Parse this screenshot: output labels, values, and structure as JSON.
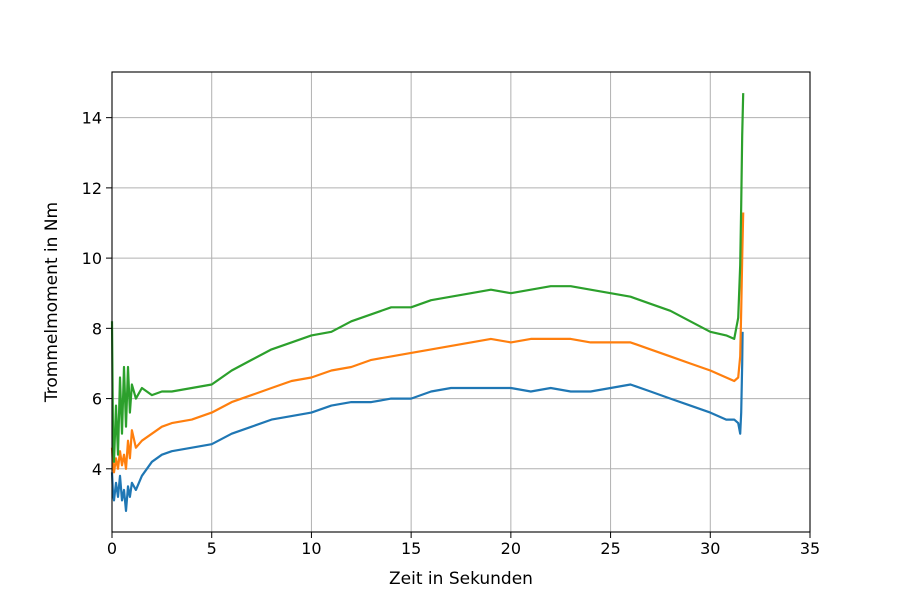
{
  "chart_data": {
    "type": "line",
    "title": "",
    "xlabel": "Zeit in Sekunden",
    "ylabel": "Trommelmoment in Nm",
    "xlim": [
      0,
      35
    ],
    "ylim": [
      2.2,
      15.3
    ],
    "xticks": [
      0,
      5,
      10,
      15,
      20,
      25,
      30,
      35
    ],
    "yticks": [
      4,
      6,
      8,
      10,
      12,
      14
    ],
    "grid": true,
    "legend": "none",
    "series": [
      {
        "color": "#1f77b4",
        "x": [
          0,
          0.05,
          0.1,
          0.2,
          0.3,
          0.4,
          0.5,
          0.6,
          0.7,
          0.8,
          0.9,
          1.0,
          1.2,
          1.5,
          2.0,
          2.5,
          3.0,
          4.0,
          5.0,
          6.0,
          7.0,
          8.0,
          9.0,
          10.0,
          11.0,
          12.0,
          13.0,
          14.0,
          15.0,
          16.0,
          17.0,
          18.0,
          19.0,
          20.0,
          21.0,
          22.0,
          23.0,
          24.0,
          25.0,
          26.0,
          27.0,
          28.0,
          29.0,
          30.0,
          30.8,
          31.2,
          31.4,
          31.5,
          31.55,
          31.6,
          31.62
        ],
        "y": [
          3.9,
          3.3,
          3.1,
          3.6,
          3.2,
          3.8,
          3.1,
          3.4,
          2.8,
          3.5,
          3.2,
          3.6,
          3.4,
          3.8,
          4.2,
          4.4,
          4.5,
          4.6,
          4.7,
          5.0,
          5.2,
          5.4,
          5.5,
          5.6,
          5.8,
          5.9,
          5.9,
          6.0,
          6.0,
          6.2,
          6.3,
          6.3,
          6.3,
          6.3,
          6.2,
          6.3,
          6.2,
          6.2,
          6.3,
          6.4,
          6.2,
          6.0,
          5.8,
          5.6,
          5.4,
          5.4,
          5.3,
          5.0,
          5.6,
          7.0,
          7.9
        ]
      },
      {
        "color": "#ff7f0e",
        "x": [
          0,
          0.05,
          0.1,
          0.2,
          0.3,
          0.4,
          0.5,
          0.6,
          0.7,
          0.8,
          0.9,
          1.0,
          1.2,
          1.5,
          2.0,
          2.5,
          3.0,
          4.0,
          5.0,
          6.0,
          7.0,
          8.0,
          9.0,
          10.0,
          11.0,
          12.0,
          13.0,
          14.0,
          15.0,
          16.0,
          17.0,
          18.0,
          19.0,
          20.0,
          21.0,
          22.0,
          23.0,
          24.0,
          25.0,
          26.0,
          27.0,
          28.0,
          29.0,
          30.0,
          30.8,
          31.2,
          31.4,
          31.5,
          31.55,
          31.6,
          31.65
        ],
        "y": [
          4.6,
          4.1,
          3.9,
          4.3,
          4.0,
          4.5,
          4.1,
          4.4,
          4.0,
          4.8,
          4.3,
          5.1,
          4.6,
          4.8,
          5.0,
          5.2,
          5.3,
          5.4,
          5.6,
          5.9,
          6.1,
          6.3,
          6.5,
          6.6,
          6.8,
          6.9,
          7.1,
          7.2,
          7.3,
          7.4,
          7.5,
          7.6,
          7.7,
          7.6,
          7.7,
          7.7,
          7.7,
          7.6,
          7.6,
          7.6,
          7.4,
          7.2,
          7.0,
          6.8,
          6.6,
          6.5,
          6.6,
          7.2,
          8.5,
          10.0,
          11.3
        ]
      },
      {
        "color": "#2ca02c",
        "x": [
          0,
          0.05,
          0.1,
          0.2,
          0.3,
          0.4,
          0.5,
          0.6,
          0.7,
          0.8,
          0.9,
          1.0,
          1.2,
          1.5,
          2.0,
          2.5,
          3.0,
          4.0,
          5.0,
          6.0,
          7.0,
          8.0,
          9.0,
          10.0,
          11.0,
          12.0,
          13.0,
          14.0,
          15.0,
          16.0,
          17.0,
          18.0,
          19.0,
          20.0,
          21.0,
          22.0,
          23.0,
          24.0,
          25.0,
          26.0,
          27.0,
          28.0,
          29.0,
          30.0,
          30.8,
          31.2,
          31.4,
          31.5,
          31.55,
          31.6,
          31.65
        ],
        "y": [
          8.2,
          5.0,
          4.2,
          5.8,
          4.4,
          6.6,
          5.0,
          6.9,
          5.2,
          6.9,
          5.6,
          6.4,
          6.0,
          6.3,
          6.1,
          6.2,
          6.2,
          6.3,
          6.4,
          6.8,
          7.1,
          7.4,
          7.6,
          7.8,
          7.9,
          8.2,
          8.4,
          8.6,
          8.6,
          8.8,
          8.9,
          9.0,
          9.1,
          9.0,
          9.1,
          9.2,
          9.2,
          9.1,
          9.0,
          8.9,
          8.7,
          8.5,
          8.2,
          7.9,
          7.8,
          7.7,
          8.3,
          9.8,
          11.5,
          13.5,
          14.7
        ]
      }
    ]
  }
}
